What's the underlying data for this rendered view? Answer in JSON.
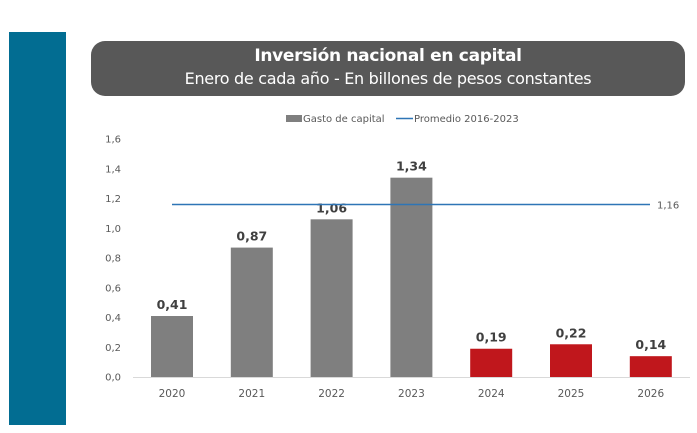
{
  "colors": {
    "side_bar": "#026d92",
    "title_box": "#585858",
    "historical_bar": "#7f7f7f",
    "projected_bar": "#c0171c",
    "average_line": "#2e75b6"
  },
  "chart_data": {
    "type": "bar",
    "title": "Inversión nacional en capital",
    "subtitle": "Enero de cada año - En billones de pesos constantes",
    "xlabel": "",
    "ylabel": "",
    "categories": [
      "2020",
      "2021",
      "2022",
      "2023",
      "2024",
      "2025",
      "2026"
    ],
    "series": [
      {
        "name": "Gasto de capital",
        "values": [
          0.41,
          0.87,
          1.06,
          1.34,
          0.19,
          0.22,
          0.14
        ],
        "labels": [
          "0,41",
          "0,87",
          "1,06",
          "1,34",
          "0,19",
          "0,22",
          "0,14"
        ],
        "colors": [
          "#7f7f7f",
          "#7f7f7f",
          "#7f7f7f",
          "#7f7f7f",
          "#c0171c",
          "#c0171c",
          "#c0171c"
        ]
      },
      {
        "name": "Promedio 2016-2023",
        "type": "line",
        "value": 1.16,
        "label": "1,16",
        "color": "#2e75b6"
      }
    ],
    "ylim": [
      0,
      1.6
    ],
    "yticks": [
      0,
      0.2,
      0.4,
      0.6,
      0.8,
      1.0,
      1.2,
      1.4,
      1.6
    ],
    "ytick_labels": [
      "0,0",
      "0,2",
      "0,4",
      "0,6",
      "0,8",
      "1,0",
      "1,2",
      "1,4",
      "1,6"
    ],
    "grid": false,
    "legend": {
      "placement": "top-center",
      "entries": [
        "Gasto de capital",
        "Promedio 2016-2023"
      ]
    }
  }
}
